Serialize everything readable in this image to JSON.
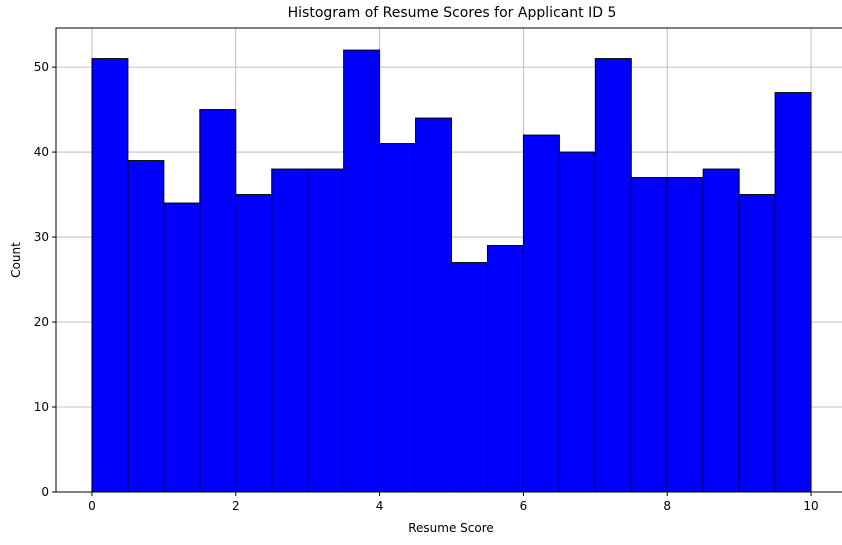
{
  "chart_data": {
    "type": "bar",
    "title": "Histogram of Resume Scores for Applicant ID 5",
    "xlabel": "Resume Score",
    "ylabel": "Count",
    "bin_edges": [
      0,
      0.5,
      1,
      1.5,
      2,
      2.5,
      3,
      3.5,
      4,
      4.5,
      5,
      5.5,
      6,
      6.5,
      7,
      7.5,
      8,
      8.5,
      9,
      9.5,
      10
    ],
    "values": [
      51,
      39,
      34,
      45,
      35,
      38,
      38,
      52,
      41,
      44,
      27,
      29,
      42,
      40,
      51,
      37,
      37,
      38,
      35,
      47
    ],
    "xlim": [
      -0.5,
      10.5
    ],
    "ylim": [
      0,
      54.6
    ],
    "xticks": [
      0,
      2,
      4,
      6,
      8,
      10
    ],
    "xtick_labels": [
      "0",
      "2",
      "4",
      "6",
      "8",
      "10"
    ],
    "yticks": [
      0,
      10,
      20,
      30,
      40,
      50
    ],
    "ytick_labels": [
      "0",
      "10",
      "20",
      "30",
      "40",
      "50"
    ],
    "grid": true,
    "colors": {
      "bar_fill": "#0000ff",
      "bar_edge": "#000000",
      "grid": "#b0b0b0"
    }
  }
}
